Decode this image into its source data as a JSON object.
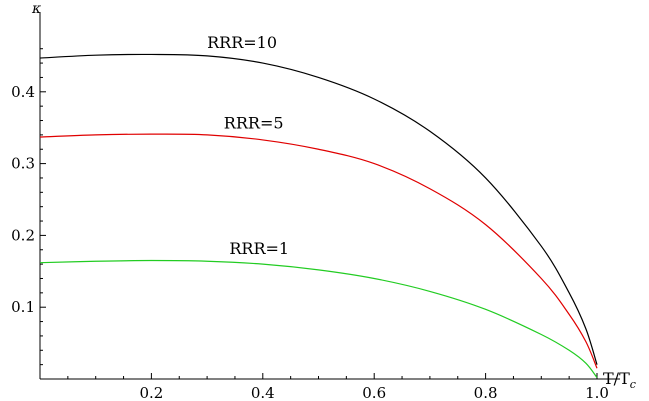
{
  "chart_data": {
    "type": "line",
    "title": "",
    "xlabel": "T/T",
    "xlabel_sub": "c",
    "ylabel": "κ",
    "xlim": [
      0,
      1.0
    ],
    "ylim": [
      0,
      0.5
    ],
    "grid": false,
    "legend": "none",
    "x_ticks": [
      0.2,
      0.4,
      0.6,
      0.8,
      1.0
    ],
    "x_tick_labels": [
      "0.2",
      "0.4",
      "0.6",
      "0.8",
      "1.0"
    ],
    "y_ticks": [
      0.1,
      0.2,
      0.3,
      0.4
    ],
    "y_tick_labels": [
      "0.1",
      "0.2",
      "0.3",
      "0.4"
    ],
    "series": [
      {
        "name": "RRR=10",
        "color": "#000000",
        "x": [
          0,
          0.1,
          0.2,
          0.3,
          0.4,
          0.5,
          0.6,
          0.7,
          0.8,
          0.9,
          0.95,
          0.98,
          1.0
        ],
        "y": [
          0.447,
          0.451,
          0.452,
          0.45,
          0.44,
          0.42,
          0.39,
          0.345,
          0.28,
          0.185,
          0.12,
          0.07,
          0.02
        ]
      },
      {
        "name": "RRR=5",
        "color": "#e00000",
        "x": [
          0,
          0.1,
          0.2,
          0.3,
          0.4,
          0.5,
          0.6,
          0.7,
          0.8,
          0.9,
          0.95,
          0.98,
          1.0
        ],
        "y": [
          0.337,
          0.34,
          0.341,
          0.34,
          0.333,
          0.32,
          0.3,
          0.265,
          0.215,
          0.14,
          0.09,
          0.052,
          0.015
        ]
      },
      {
        "name": "RRR=1",
        "color": "#22cc22",
        "x": [
          0,
          0.1,
          0.2,
          0.3,
          0.4,
          0.5,
          0.6,
          0.7,
          0.8,
          0.9,
          0.95,
          0.98,
          1.0
        ],
        "y": [
          0.162,
          0.164,
          0.165,
          0.164,
          0.16,
          0.152,
          0.14,
          0.122,
          0.097,
          0.062,
          0.04,
          0.022,
          0.002
        ]
      }
    ],
    "annotations": [
      {
        "text": "RRR=10",
        "x": 0.3,
        "y": 0.461
      },
      {
        "text": "RRR=5",
        "x": 0.33,
        "y": 0.349
      },
      {
        "text": "RRR=1",
        "x": 0.34,
        "y": 0.174
      }
    ]
  }
}
